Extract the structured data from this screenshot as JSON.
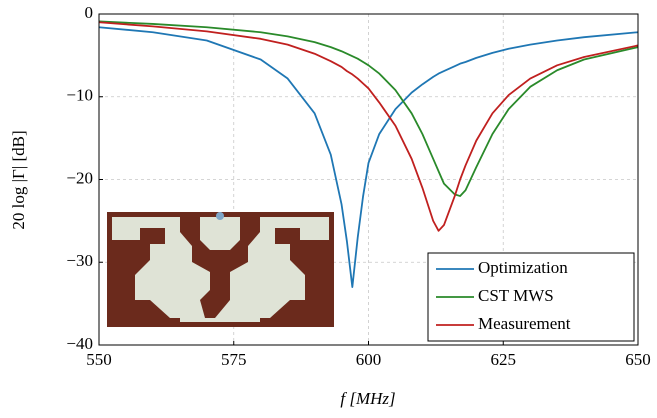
{
  "chart_data": {
    "type": "line",
    "xlabel": "f [MHz]",
    "ylabel": "20 log |Γ| [dB]",
    "x": [
      550,
      560,
      570,
      580,
      585,
      590,
      593,
      595,
      596,
      597,
      598,
      599,
      600,
      602,
      605,
      608,
      610,
      612,
      613,
      614,
      616,
      617,
      618,
      620,
      623,
      626,
      630,
      635,
      640,
      650
    ],
    "series": [
      {
        "name": "Optimization",
        "color": "#1f77b4",
        "values": [
          -1.6,
          -2.2,
          -3.2,
          -5.5,
          -7.8,
          -12,
          -17,
          -23,
          -27.5,
          -33,
          -27,
          -22,
          -18,
          -14.5,
          -11.5,
          -9.5,
          -8.5,
          -7.6,
          -7.2,
          -6.9,
          -6.3,
          -6.0,
          -5.8,
          -5.3,
          -4.7,
          -4.2,
          -3.7,
          -3.2,
          -2.8,
          -2.2
        ]
      },
      {
        "name": "CST MWS",
        "color": "#2a8a2a",
        "values": [
          -0.9,
          -1.2,
          -1.6,
          -2.2,
          -2.7,
          -3.4,
          -4.0,
          -4.5,
          -4.8,
          -5.1,
          -5.4,
          -5.8,
          -6.2,
          -7.2,
          -9.2,
          -12,
          -14.5,
          -17.5,
          -19,
          -20.5,
          -21.8,
          -22,
          -21.3,
          -18.5,
          -14.5,
          -11.5,
          -8.8,
          -6.8,
          -5.5,
          -4.0
        ]
      },
      {
        "name": "Measurement",
        "color": "#c0201f",
        "values": [
          -1.0,
          -1.5,
          -2.1,
          -3.0,
          -3.7,
          -4.8,
          -5.7,
          -6.4,
          -6.9,
          -7.3,
          -7.8,
          -8.4,
          -9.0,
          -10.7,
          -13.5,
          -17.5,
          -21,
          -25,
          -26.2,
          -25.5,
          -22,
          -20,
          -18.3,
          -15.3,
          -12,
          -9.8,
          -7.8,
          -6.2,
          -5.2,
          -3.8
        ]
      }
    ],
    "xlim": [
      550,
      650
    ],
    "xticks": [
      550,
      575,
      600,
      625,
      650
    ],
    "ylim": [
      -40,
      0
    ],
    "yticks": [
      {
        "value": -40,
        "label": "−40"
      },
      {
        "value": -30,
        "label": "−30"
      },
      {
        "value": -20,
        "label": "−20"
      },
      {
        "value": -10,
        "label": "−10"
      },
      0
    ],
    "grid": true,
    "legend": "lower-right"
  }
}
